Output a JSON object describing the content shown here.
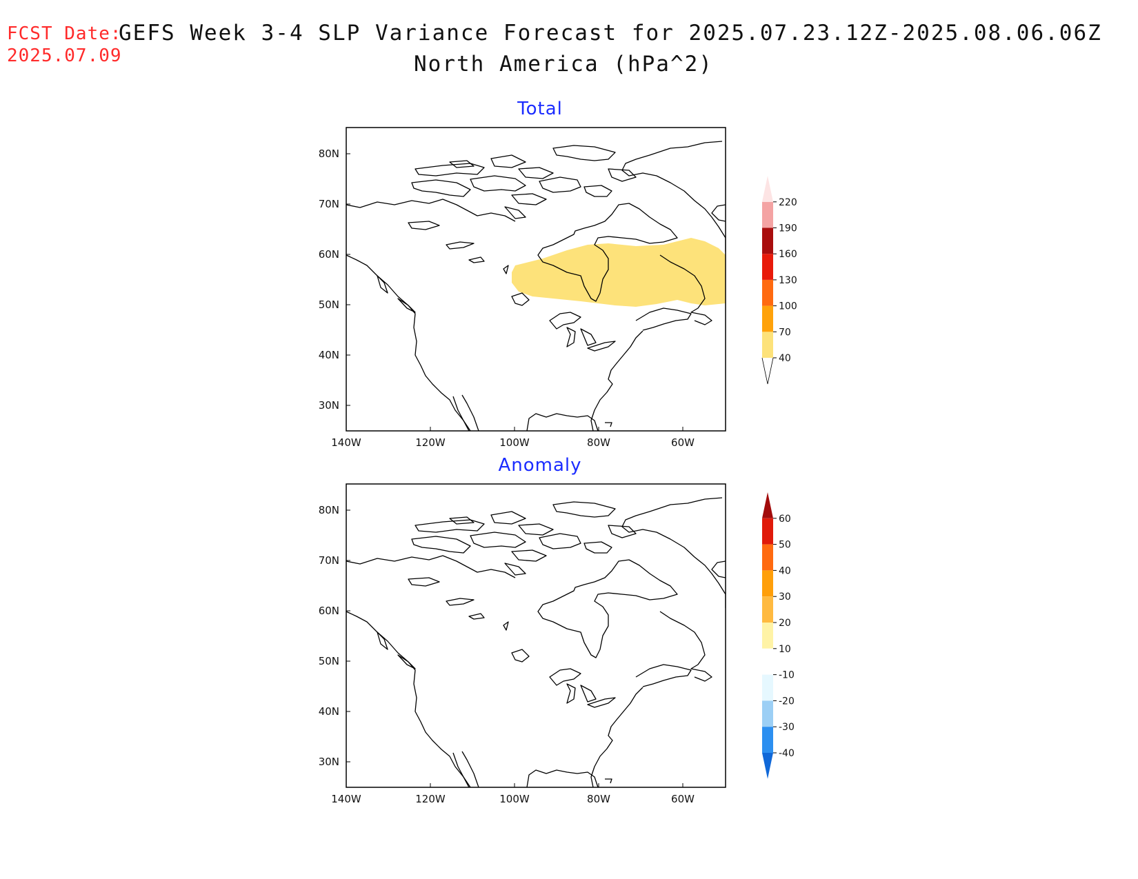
{
  "header": {
    "fcst_label": "FCST Date:",
    "fcst_date": "2025.07.09",
    "title": "GEFS Week 3-4 SLP Variance Forecast for 2025.07.23.12Z-2025.08.06.06Z",
    "subtitle": "North America (hPa^2)"
  },
  "axes": {
    "lat_labels": [
      "80N",
      "70N",
      "60N",
      "50N",
      "40N",
      "30N"
    ],
    "lon_labels": [
      "140W",
      "120W",
      "100W",
      "80W",
      "60W"
    ]
  },
  "panels": [
    {
      "title": "Total",
      "colorbar": {
        "levels": [
          "40",
          "70",
          "100",
          "130",
          "160",
          "190",
          "220"
        ],
        "colors": [
          "#fde27a",
          "#ffa20a",
          "#ff6a10",
          "#e81a0a",
          "#a90d0d",
          "#f4a3a3",
          "#fde4e4"
        ]
      },
      "shaded_region": "Yellow (40–70 hPa^2) band across central/eastern Canada, ~50N–63N, ~100W–50W"
    },
    {
      "title": "Anomaly",
      "colorbar": {
        "levels": [
          "60",
          "50",
          "40",
          "30",
          "20",
          "10",
          "-10",
          "-20",
          "-30",
          "-40"
        ],
        "colors": [
          "#a20b0b",
          "#e01a0a",
          "#ff6a10",
          "#ff9f0a",
          "#ffba40",
          "#fff3a6",
          "#ffffff",
          "#e6f8ff",
          "#9ccff5",
          "#2c8ff0",
          "#1068d8"
        ]
      }
    }
  ]
}
